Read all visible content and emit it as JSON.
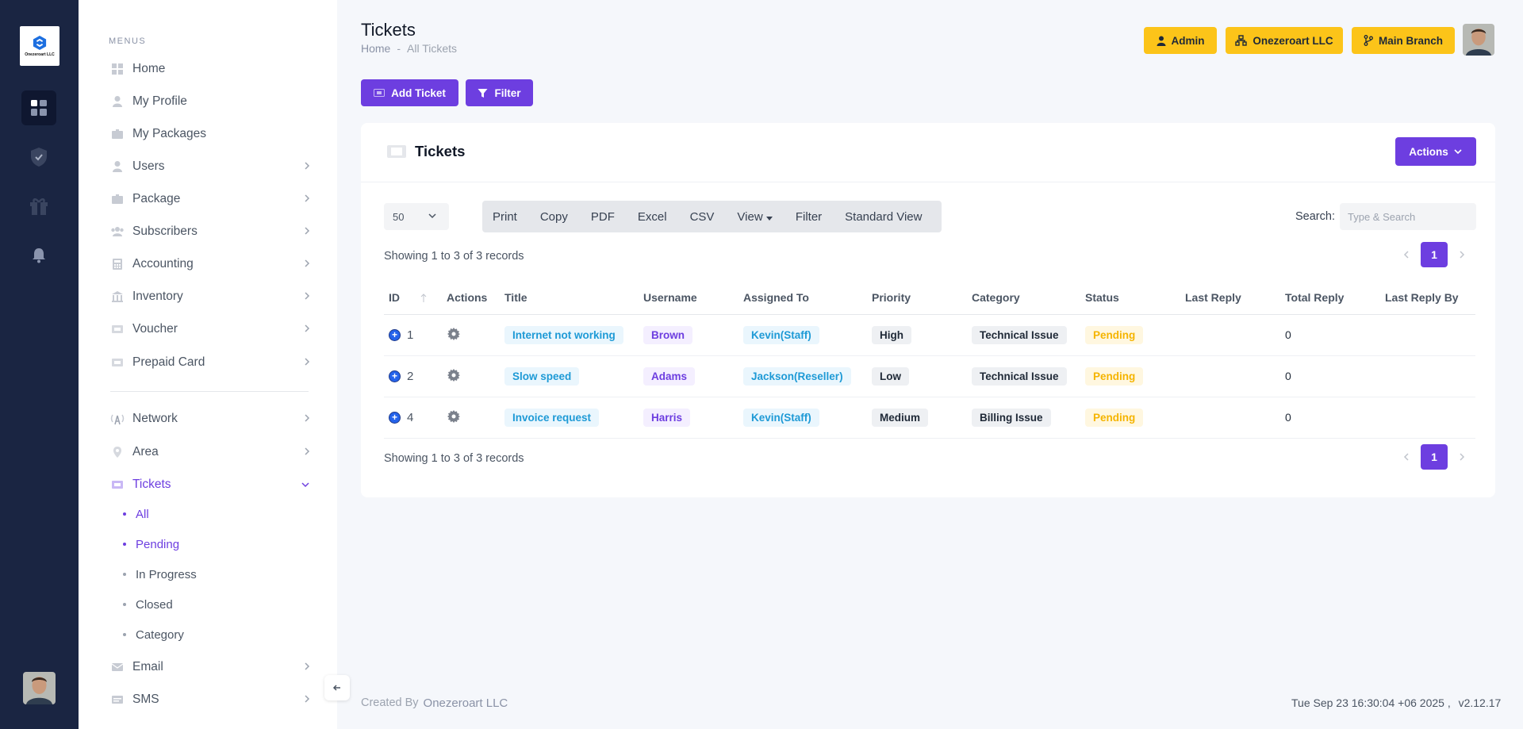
{
  "brand": {
    "logo_text": "Onezeroart LLC"
  },
  "sidebar": {
    "menus_label": "MENUS",
    "items": [
      {
        "label": "Home",
        "icon": "dashboard-icon"
      },
      {
        "label": "My Profile",
        "icon": "user-icon"
      },
      {
        "label": "My Packages",
        "icon": "package-icon"
      },
      {
        "label": "Users",
        "icon": "user-icon"
      },
      {
        "label": "Package",
        "icon": "package-icon"
      },
      {
        "label": "Subscribers",
        "icon": "users-icon"
      },
      {
        "label": "Accounting",
        "icon": "calculator-icon"
      },
      {
        "label": "Inventory",
        "icon": "bank-icon"
      },
      {
        "label": "Voucher",
        "icon": "ticket-icon"
      },
      {
        "label": "Prepaid Card",
        "icon": "ticket-icon"
      },
      {
        "label": "Network",
        "icon": "antenna-icon"
      },
      {
        "label": "Area",
        "icon": "map-pin-icon"
      },
      {
        "label": "Tickets",
        "icon": "ticket-icon"
      },
      {
        "label": "Email",
        "icon": "mail-icon"
      },
      {
        "label": "SMS",
        "icon": "message-icon"
      }
    ],
    "tickets_sub": [
      "All",
      "Pending",
      "In Progress",
      "Closed",
      "Category"
    ]
  },
  "header": {
    "title": "Tickets",
    "breadcrumb": {
      "home": "Home",
      "separator": "-",
      "current": "All Tickets"
    },
    "buttons": {
      "admin": "Admin",
      "company": "Onezeroart LLC",
      "branch": "Main Branch"
    }
  },
  "toolbar": {
    "add_ticket": "Add Ticket",
    "filter": "Filter"
  },
  "card": {
    "title": "Tickets",
    "actions": "Actions",
    "page_length": "50",
    "dt_buttons": [
      "Print",
      "Copy",
      "PDF",
      "Excel",
      "CSV",
      "View",
      "Filter",
      "Standard View"
    ],
    "search_label": "Search:",
    "search_placeholder": "Type & Search",
    "info": "Showing 1 to 3 of 3 records",
    "current_page": "1"
  },
  "table": {
    "columns": [
      "ID",
      "Actions",
      "Title",
      "Username",
      "Assigned To",
      "Priority",
      "Category",
      "Status",
      "Last Reply",
      "Total Reply",
      "Last Reply By"
    ],
    "rows": [
      {
        "id": "1",
        "title": "Internet not working",
        "username": "Brown",
        "assigned": "Kevin(Staff)",
        "priority": "High",
        "category": "Technical Issue",
        "status": "Pending",
        "last_reply": "",
        "total_reply": "0",
        "last_reply_by": ""
      },
      {
        "id": "2",
        "title": "Slow speed",
        "username": "Adams",
        "assigned": "Jackson(Reseller)",
        "priority": "Low",
        "category": "Technical Issue",
        "status": "Pending",
        "last_reply": "",
        "total_reply": "0",
        "last_reply_by": ""
      },
      {
        "id": "4",
        "title": "Invoice request",
        "username": "Harris",
        "assigned": "Kevin(Staff)",
        "priority": "Medium",
        "category": "Billing Issue",
        "status": "Pending",
        "last_reply": "",
        "total_reply": "0",
        "last_reply_by": ""
      }
    ]
  },
  "footer": {
    "created_by": "Created By",
    "company": "Onezeroart LLC",
    "datetime": "Tue Sep 23 16:30:04 +06 2025 ,",
    "version": "v2.12.17"
  },
  "colors": {
    "rail": "#1a2542",
    "accent": "#6d3ee0",
    "yellow": "#fcc419"
  }
}
